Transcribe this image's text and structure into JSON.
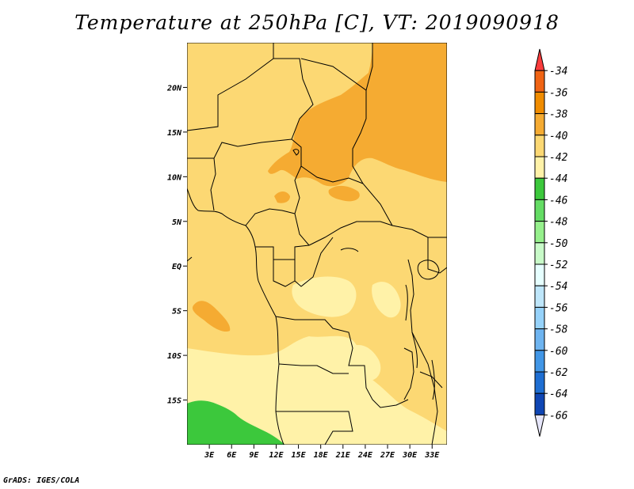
{
  "title": "Temperature at 250hPa [C], VT: 2019090918",
  "credit": "GrADS: IGES/COLA",
  "map": {
    "lon_ticks": [
      "3E",
      "6E",
      "9E",
      "12E",
      "15E",
      "18E",
      "21E",
      "24E",
      "27E",
      "30E",
      "33E"
    ],
    "lat_ticks": [
      "20N",
      "15N",
      "10N",
      "5N",
      "EQ",
      "5S",
      "10S",
      "15S"
    ],
    "extent": {
      "lon_min": 0,
      "lon_max": 35,
      "lat_min": -20,
      "lat_max": 25
    }
  },
  "colorbar": {
    "labels": [
      "-34",
      "-36",
      "-38",
      "-40",
      "-42",
      "-44",
      "-46",
      "-48",
      "-50",
      "-52",
      "-54",
      "-56",
      "-58",
      "-60",
      "-62",
      "-64",
      "-66"
    ],
    "colors": [
      "#fa3c3c",
      "#f06414",
      "#f08c00",
      "#f5ab32",
      "#fcd873",
      "#fff2a8",
      "#3cc83c",
      "#64dc64",
      "#96f08c",
      "#c8fac8",
      "#e6ffff",
      "#bee6fa",
      "#96d2fa",
      "#6eb4f0",
      "#4196e6",
      "#1e6ed2",
      "#0f46b4",
      "#0a1e8c",
      "#e6e6fa"
    ]
  },
  "colors": {
    "level_40_42": "#fcd873",
    "level_38_40": "#f5ab32",
    "level_42_44": "#fff2a8",
    "level_44_46": "#3cc83c"
  }
}
